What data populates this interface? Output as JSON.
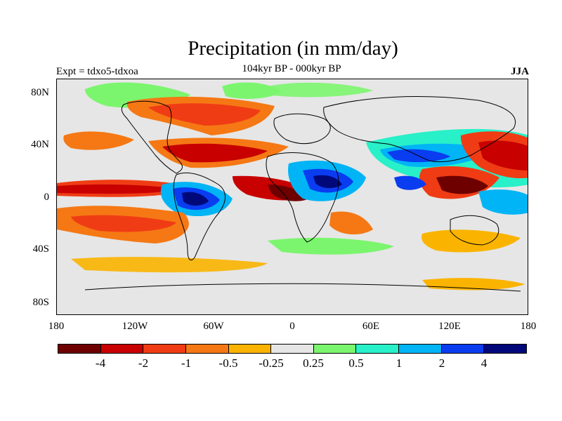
{
  "title": "Precipitation (in mm/day)",
  "subtitle": "104kyr BP - 000kyr BP",
  "left_label": "Expt = tdxo5-tdxoa",
  "right_label": "JJA",
  "lat_ticks": [
    "80N",
    "40N",
    "0",
    "40S",
    "80S"
  ],
  "lon_ticks": [
    "180",
    "120W",
    "60W",
    "0",
    "60E",
    "120E",
    "180"
  ],
  "colorbar": {
    "colors": [
      "#6e0000",
      "#c80000",
      "#f03c14",
      "#f57814",
      "#fab400",
      "#e6e6e6",
      "#7cf56e",
      "#28f0c8",
      "#00b4f5",
      "#0a3cf0",
      "#00087a"
    ],
    "labels": [
      "-4",
      "-2",
      "-1",
      "-0.5",
      "-0.25",
      "0.25",
      "0.5",
      "1",
      "2",
      "4"
    ]
  }
}
